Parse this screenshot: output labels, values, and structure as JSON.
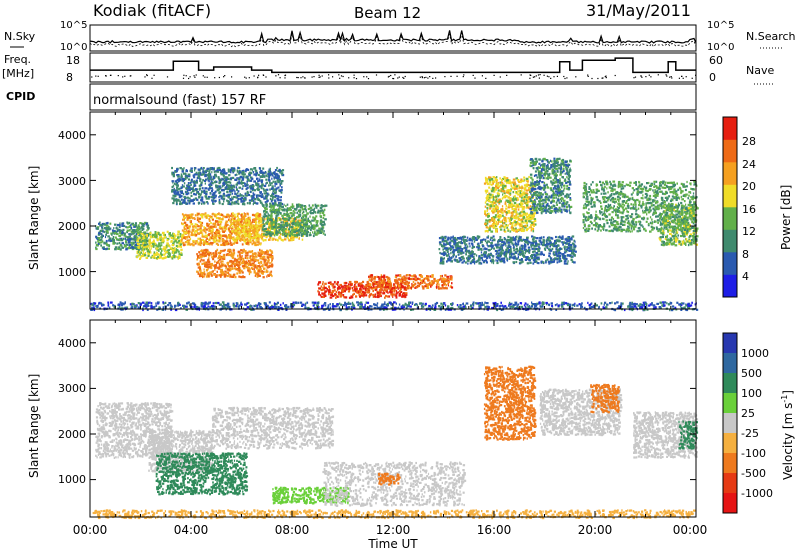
{
  "header": {
    "station": "Kodiak (fitACF)",
    "beam": "Beam 12",
    "date": "31/May/2011"
  },
  "noise_panel": {
    "left_label": "N.Sky",
    "right_label": "N.Search",
    "left_ticks": [
      "10^5",
      "10^0"
    ],
    "right_ticks": [
      "10^5",
      "10^0"
    ]
  },
  "freq_panel": {
    "left_label_1": "Freq.",
    "left_label_2": "[MHz]",
    "right_label": "Nave",
    "left_ticks": [
      "18",
      "8"
    ],
    "right_ticks": [
      "60",
      "0"
    ]
  },
  "cpid_panel": {
    "label": "CPID",
    "text": "normalsound (fast) 157 RF"
  },
  "axes": {
    "y_label": "Slant Range [km]",
    "y_ticks": [
      "1000",
      "2000",
      "3000",
      "4000"
    ],
    "x_label": "Time UT",
    "x_ticks": [
      "00:00",
      "04:00",
      "08:00",
      "12:00",
      "16:00",
      "20:00",
      "00:00"
    ]
  },
  "power_scale": {
    "label": "Power [dB]",
    "ticks": [
      "4",
      "8",
      "12",
      "16",
      "20",
      "24",
      "28"
    ],
    "colors": [
      "#1e1ee6",
      "#2a5ab0",
      "#3f8a6e",
      "#62b04a",
      "#f0dc28",
      "#f5a020",
      "#ee6a16",
      "#e61e10"
    ]
  },
  "velocity_scale": {
    "label": "Velocity [m s",
    "label_sup": "-1",
    "label_end": "]",
    "ticks": [
      "1000",
      "500",
      "100",
      "25",
      "-25",
      "-100",
      "-500",
      "-1000"
    ],
    "colors": [
      "#2838b0",
      "#2f68a0",
      "#2f8a5a",
      "#6ad03a",
      "#c8c8c8",
      "#f5b040",
      "#ee7a1e",
      "#e63a14",
      "#e61414"
    ]
  },
  "chart_data": {
    "type": "heatmap",
    "x_unit": "hours UT",
    "xlim": [
      0,
      24
    ],
    "ylim": [
      180,
      4500
    ],
    "power_regions": [
      {
        "t0": 0.2,
        "t1": 2.3,
        "r0": 1500,
        "r1": 2100,
        "db": 10
      },
      {
        "t0": 1.8,
        "t1": 3.6,
        "r0": 1300,
        "r1": 1900,
        "db": 16
      },
      {
        "t0": 3.6,
        "t1": 6.8,
        "r0": 1600,
        "r1": 2300,
        "db": 22
      },
      {
        "t0": 5.6,
        "t1": 8.4,
        "r0": 1700,
        "r1": 2200,
        "db": 20
      },
      {
        "t0": 4.2,
        "t1": 7.2,
        "r0": 900,
        "r1": 1500,
        "db": 24
      },
      {
        "t0": 6.8,
        "t1": 9.3,
        "r0": 1800,
        "r1": 2500,
        "db": 12
      },
      {
        "t0": 3.2,
        "t1": 7.6,
        "r0": 2500,
        "r1": 3300,
        "db": 8
      },
      {
        "t0": 9.0,
        "t1": 12.5,
        "r0": 450,
        "r1": 800,
        "db": 28
      },
      {
        "t0": 11.0,
        "t1": 14.3,
        "r0": 650,
        "r1": 950,
        "db": 26
      },
      {
        "t0": 15.6,
        "t1": 17.6,
        "r0": 1900,
        "r1": 3100,
        "db": 18
      },
      {
        "t0": 13.8,
        "t1": 19.2,
        "r0": 1200,
        "r1": 1800,
        "db": 8
      },
      {
        "t0": 17.4,
        "t1": 19.0,
        "r0": 2300,
        "r1": 3500,
        "db": 10
      },
      {
        "t0": 19.5,
        "t1": 24.0,
        "r0": 1900,
        "r1": 3000,
        "db": 12
      },
      {
        "t0": 22.5,
        "t1": 24.0,
        "r0": 1600,
        "r1": 2500,
        "db": 14
      },
      {
        "t0": 0.0,
        "t1": 24.0,
        "r0": 180,
        "r1": 350,
        "db": 6
      }
    ],
    "velocity_regions": [
      {
        "t0": 0.2,
        "t1": 3.2,
        "r0": 1500,
        "r1": 2700,
        "v": 0
      },
      {
        "t0": 2.3,
        "t1": 4.8,
        "r0": 1200,
        "r1": 2100,
        "v": 0
      },
      {
        "t0": 4.8,
        "t1": 9.6,
        "r0": 1700,
        "r1": 2600,
        "v": 0
      },
      {
        "t0": 2.6,
        "t1": 6.2,
        "r0": 700,
        "r1": 1600,
        "v": 300
      },
      {
        "t0": 7.2,
        "t1": 10.2,
        "r0": 500,
        "r1": 850,
        "v": 60
      },
      {
        "t0": 9.2,
        "t1": 14.8,
        "r0": 450,
        "r1": 1400,
        "v": 0
      },
      {
        "t0": 11.4,
        "t1": 12.2,
        "r0": 900,
        "r1": 1150,
        "v": -250
      },
      {
        "t0": 15.6,
        "t1": 17.6,
        "r0": 1900,
        "r1": 3500,
        "v": -450
      },
      {
        "t0": 17.8,
        "t1": 21.0,
        "r0": 2000,
        "r1": 3000,
        "v": 0
      },
      {
        "t0": 19.8,
        "t1": 20.9,
        "r0": 2500,
        "r1": 3100,
        "v": -250
      },
      {
        "t0": 21.5,
        "t1": 24.0,
        "r0": 1500,
        "r1": 2500,
        "v": 0
      },
      {
        "t0": 23.3,
        "t1": 24.0,
        "r0": 1700,
        "r1": 2300,
        "v": 300
      },
      {
        "t0": 0.0,
        "t1": 24.0,
        "r0": 180,
        "r1": 350,
        "v": -60
      }
    ],
    "frequency_mhz": [
      {
        "t": 0.0,
        "f": 12.2
      },
      {
        "t": 3.3,
        "f": 12.2
      },
      {
        "t": 3.3,
        "f": 15.6
      },
      {
        "t": 4.3,
        "f": 15.6
      },
      {
        "t": 4.3,
        "f": 12.2
      },
      {
        "t": 4.9,
        "f": 12.2
      },
      {
        "t": 4.9,
        "f": 13.4
      },
      {
        "t": 6.4,
        "f": 13.4
      },
      {
        "t": 6.4,
        "f": 12.2
      },
      {
        "t": 7.2,
        "f": 12.2
      },
      {
        "t": 7.2,
        "f": 11.3
      },
      {
        "t": 18.6,
        "f": 11.3
      },
      {
        "t": 18.6,
        "f": 15.4
      },
      {
        "t": 19.0,
        "f": 15.4
      },
      {
        "t": 19.0,
        "f": 12.2
      },
      {
        "t": 19.5,
        "f": 12.2
      },
      {
        "t": 19.5,
        "f": 16.0
      },
      {
        "t": 20.8,
        "f": 16.0
      },
      {
        "t": 20.8,
        "f": 16.8
      },
      {
        "t": 21.5,
        "f": 16.8
      },
      {
        "t": 21.5,
        "f": 11.3
      },
      {
        "t": 22.9,
        "f": 11.3
      },
      {
        "t": 22.9,
        "f": 15.4
      },
      {
        "t": 23.2,
        "f": 15.4
      },
      {
        "t": 23.2,
        "f": 12.2
      },
      {
        "t": 24.0,
        "f": 12.2
      }
    ]
  }
}
